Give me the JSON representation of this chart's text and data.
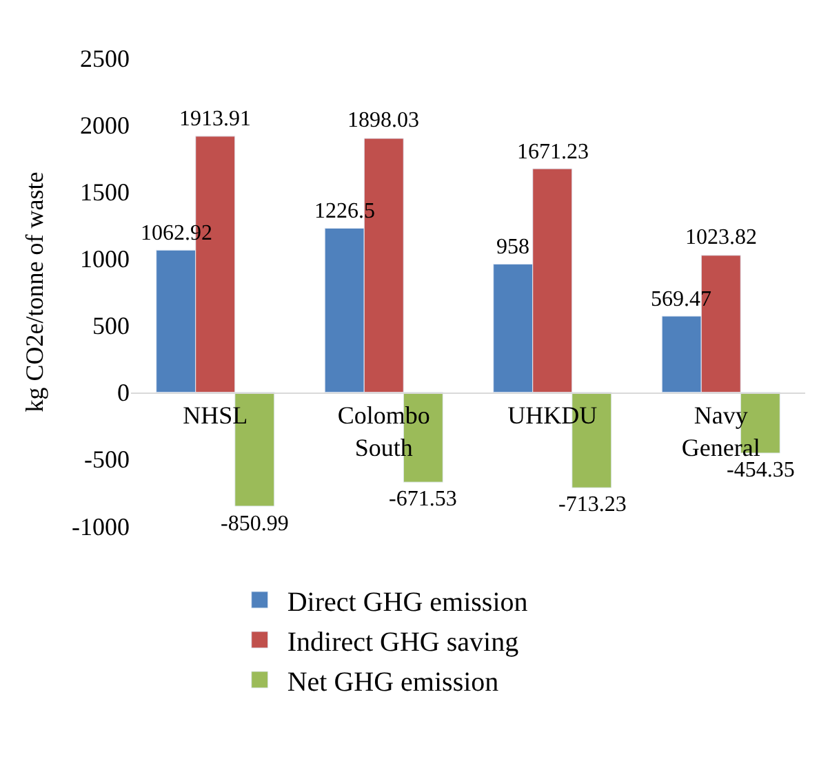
{
  "chart_data": {
    "type": "bar",
    "ylabel": "kg CO2e/tonne of waste",
    "categories": [
      "NHSL",
      "Colombo South",
      "UHKDU",
      "Navy General"
    ],
    "series": [
      {
        "name": "Direct GHG emission",
        "color": "#4f81bd",
        "values": [
          1062.92,
          1226.5,
          958,
          569.47
        ]
      },
      {
        "name": "Indirect GHG saving",
        "color": "#c0504d",
        "values": [
          1913.91,
          1898.03,
          1671.23,
          1023.82
        ]
      },
      {
        "name": "Net GHG emission",
        "color": "#9bbb59",
        "values": [
          -850.99,
          -671.53,
          -713.23,
          -454.35
        ]
      }
    ],
    "ylim": [
      -1000,
      2500
    ],
    "yticks": [
      -1000,
      -500,
      0,
      500,
      1000,
      1500,
      2000,
      2500
    ],
    "data_labels": true,
    "legend": "bottom"
  }
}
